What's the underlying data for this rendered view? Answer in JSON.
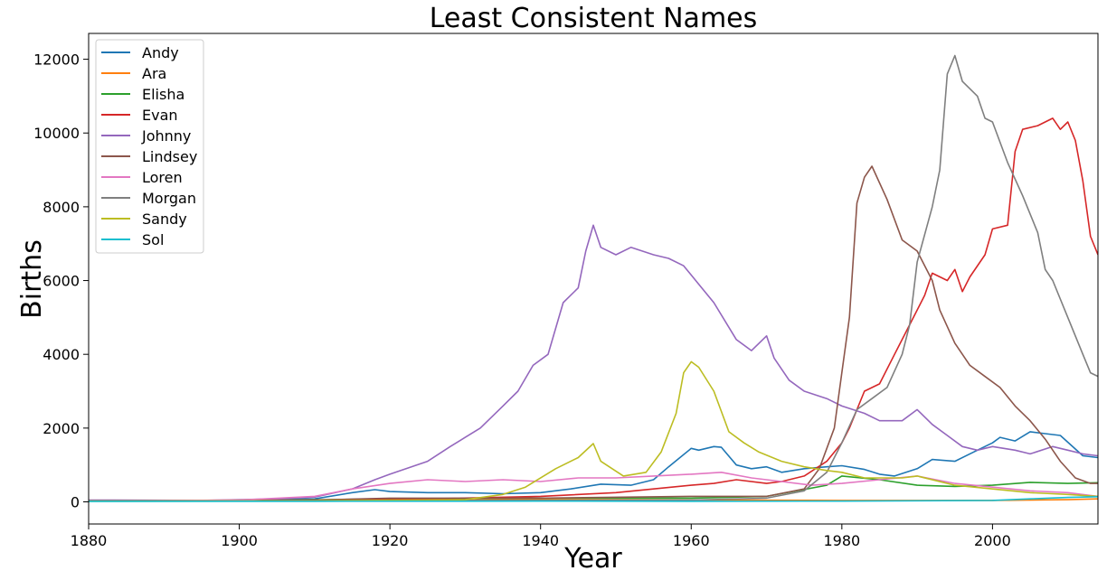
{
  "chart_data": {
    "type": "line",
    "title": "Least Consistent Names",
    "xlabel": "Year",
    "ylabel": "Births",
    "xlim": [
      1880,
      2014
    ],
    "ylim": [
      -600,
      12700
    ],
    "xticks": [
      1880,
      1900,
      1920,
      1940,
      1960,
      1980,
      2000
    ],
    "yticks": [
      0,
      2000,
      4000,
      6000,
      8000,
      10000,
      12000
    ],
    "legend_position": "top-left",
    "grid": false,
    "series": [
      {
        "name": "Andy",
        "color": "#1f77b4",
        "points": [
          [
            1880,
            30
          ],
          [
            1895,
            30
          ],
          [
            1910,
            80
          ],
          [
            1915,
            250
          ],
          [
            1918,
            330
          ],
          [
            1920,
            280
          ],
          [
            1925,
            250
          ],
          [
            1930,
            250
          ],
          [
            1935,
            220
          ],
          [
            1940,
            250
          ],
          [
            1944,
            350
          ],
          [
            1948,
            480
          ],
          [
            1952,
            450
          ],
          [
            1955,
            600
          ],
          [
            1957,
            950
          ],
          [
            1960,
            1450
          ],
          [
            1961,
            1400
          ],
          [
            1963,
            1500
          ],
          [
            1964,
            1480
          ],
          [
            1966,
            1000
          ],
          [
            1968,
            900
          ],
          [
            1970,
            950
          ],
          [
            1972,
            800
          ],
          [
            1975,
            900
          ],
          [
            1978,
            950
          ],
          [
            1980,
            980
          ],
          [
            1983,
            880
          ],
          [
            1985,
            750
          ],
          [
            1987,
            700
          ],
          [
            1990,
            900
          ],
          [
            1992,
            1150
          ],
          [
            1995,
            1100
          ],
          [
            1998,
            1400
          ],
          [
            2000,
            1600
          ],
          [
            2001,
            1750
          ],
          [
            2003,
            1650
          ],
          [
            2005,
            1900
          ],
          [
            2007,
            1850
          ],
          [
            2009,
            1800
          ],
          [
            2012,
            1250
          ],
          [
            2014,
            1200
          ]
        ]
      },
      {
        "name": "Ara",
        "color": "#ff7f0e",
        "points": [
          [
            1880,
            20
          ],
          [
            1900,
            20
          ],
          [
            1920,
            40
          ],
          [
            1940,
            60
          ],
          [
            1960,
            50
          ],
          [
            1980,
            40
          ],
          [
            2000,
            40
          ],
          [
            2010,
            60
          ],
          [
            2014,
            80
          ]
        ]
      },
      {
        "name": "Elisha",
        "color": "#2ca02c",
        "points": [
          [
            1880,
            20
          ],
          [
            1900,
            30
          ],
          [
            1920,
            80
          ],
          [
            1940,
            100
          ],
          [
            1960,
            100
          ],
          [
            1970,
            150
          ],
          [
            1978,
            450
          ],
          [
            1980,
            700
          ],
          [
            1985,
            600
          ],
          [
            1990,
            450
          ],
          [
            1995,
            420
          ],
          [
            2000,
            450
          ],
          [
            2005,
            530
          ],
          [
            2010,
            500
          ],
          [
            2014,
            520
          ]
        ]
      },
      {
        "name": "Evan",
        "color": "#d62728",
        "points": [
          [
            1880,
            20
          ],
          [
            1900,
            30
          ],
          [
            1920,
            60
          ],
          [
            1940,
            150
          ],
          [
            1950,
            250
          ],
          [
            1955,
            350
          ],
          [
            1960,
            450
          ],
          [
            1963,
            500
          ],
          [
            1966,
            600
          ],
          [
            1970,
            500
          ],
          [
            1972,
            550
          ],
          [
            1975,
            700
          ],
          [
            1978,
            1100
          ],
          [
            1980,
            1600
          ],
          [
            1981,
            2000
          ],
          [
            1983,
            3000
          ],
          [
            1985,
            3200
          ],
          [
            1987,
            4000
          ],
          [
            1989,
            4800
          ],
          [
            1991,
            5600
          ],
          [
            1992,
            6200
          ],
          [
            1994,
            6000
          ],
          [
            1995,
            6300
          ],
          [
            1996,
            5700
          ],
          [
            1997,
            6100
          ],
          [
            1999,
            6700
          ],
          [
            2000,
            7400
          ],
          [
            2002,
            7500
          ],
          [
            2003,
            9500
          ],
          [
            2004,
            10100
          ],
          [
            2006,
            10200
          ],
          [
            2008,
            10400
          ],
          [
            2009,
            10100
          ],
          [
            2010,
            10300
          ],
          [
            2011,
            9800
          ],
          [
            2012,
            8700
          ],
          [
            2013,
            7200
          ],
          [
            2014,
            6700
          ]
        ]
      },
      {
        "name": "Johnny",
        "color": "#9467bd",
        "points": [
          [
            1880,
            50
          ],
          [
            1895,
            40
          ],
          [
            1905,
            80
          ],
          [
            1910,
            130
          ],
          [
            1915,
            350
          ],
          [
            1918,
            600
          ],
          [
            1920,
            750
          ],
          [
            1925,
            1100
          ],
          [
            1928,
            1500
          ],
          [
            1930,
            1750
          ],
          [
            1932,
            2000
          ],
          [
            1935,
            2600
          ],
          [
            1937,
            3000
          ],
          [
            1939,
            3700
          ],
          [
            1941,
            4000
          ],
          [
            1943,
            5400
          ],
          [
            1945,
            5800
          ],
          [
            1946,
            6800
          ],
          [
            1947,
            7500
          ],
          [
            1948,
            6900
          ],
          [
            1950,
            6700
          ],
          [
            1952,
            6900
          ],
          [
            1955,
            6700
          ],
          [
            1957,
            6600
          ],
          [
            1959,
            6400
          ],
          [
            1961,
            5900
          ],
          [
            1963,
            5400
          ],
          [
            1966,
            4400
          ],
          [
            1968,
            4100
          ],
          [
            1970,
            4500
          ],
          [
            1971,
            3900
          ],
          [
            1973,
            3300
          ],
          [
            1975,
            3000
          ],
          [
            1978,
            2800
          ],
          [
            1980,
            2600
          ],
          [
            1983,
            2400
          ],
          [
            1985,
            2200
          ],
          [
            1988,
            2200
          ],
          [
            1990,
            2500
          ],
          [
            1992,
            2100
          ],
          [
            1994,
            1800
          ],
          [
            1996,
            1500
          ],
          [
            1998,
            1400
          ],
          [
            2000,
            1500
          ],
          [
            2003,
            1400
          ],
          [
            2005,
            1300
          ],
          [
            2008,
            1500
          ],
          [
            2010,
            1400
          ],
          [
            2012,
            1300
          ],
          [
            2014,
            1250
          ]
        ]
      },
      {
        "name": "Lindsey",
        "color": "#8c564b",
        "points": [
          [
            1880,
            20
          ],
          [
            1910,
            50
          ],
          [
            1920,
            100
          ],
          [
            1940,
            100
          ],
          [
            1960,
            150
          ],
          [
            1970,
            150
          ],
          [
            1975,
            350
          ],
          [
            1977,
            900
          ],
          [
            1979,
            2000
          ],
          [
            1980,
            3500
          ],
          [
            1981,
            5000
          ],
          [
            1982,
            8100
          ],
          [
            1983,
            8800
          ],
          [
            1984,
            9100
          ],
          [
            1986,
            8200
          ],
          [
            1988,
            7100
          ],
          [
            1990,
            6800
          ],
          [
            1992,
            6000
          ],
          [
            1993,
            5200
          ],
          [
            1995,
            4300
          ],
          [
            1997,
            3700
          ],
          [
            1999,
            3400
          ],
          [
            2001,
            3100
          ],
          [
            2003,
            2600
          ],
          [
            2005,
            2200
          ],
          [
            2007,
            1700
          ],
          [
            2009,
            1100
          ],
          [
            2011,
            650
          ],
          [
            2013,
            500
          ],
          [
            2014,
            500
          ]
        ]
      },
      {
        "name": "Loren",
        "color": "#e377c2",
        "points": [
          [
            1880,
            20
          ],
          [
            1900,
            50
          ],
          [
            1910,
            150
          ],
          [
            1915,
            350
          ],
          [
            1920,
            500
          ],
          [
            1925,
            600
          ],
          [
            1930,
            550
          ],
          [
            1935,
            600
          ],
          [
            1940,
            550
          ],
          [
            1945,
            650
          ],
          [
            1950,
            650
          ],
          [
            1955,
            700
          ],
          [
            1960,
            750
          ],
          [
            1964,
            800
          ],
          [
            1968,
            650
          ],
          [
            1972,
            550
          ],
          [
            1976,
            450
          ],
          [
            1980,
            500
          ],
          [
            1985,
            600
          ],
          [
            1990,
            700
          ],
          [
            1995,
            500
          ],
          [
            2000,
            400
          ],
          [
            2005,
            300
          ],
          [
            2010,
            250
          ],
          [
            2014,
            150
          ]
        ]
      },
      {
        "name": "Morgan",
        "color": "#7f7f7f",
        "points": [
          [
            1880,
            30
          ],
          [
            1910,
            30
          ],
          [
            1940,
            40
          ],
          [
            1960,
            50
          ],
          [
            1970,
            100
          ],
          [
            1975,
            300
          ],
          [
            1978,
            800
          ],
          [
            1980,
            1600
          ],
          [
            1982,
            2500
          ],
          [
            1984,
            2800
          ],
          [
            1986,
            3100
          ],
          [
            1988,
            4000
          ],
          [
            1989,
            4800
          ],
          [
            1990,
            6500
          ],
          [
            1992,
            8000
          ],
          [
            1993,
            9000
          ],
          [
            1994,
            11600
          ],
          [
            1995,
            12100
          ],
          [
            1996,
            11400
          ],
          [
            1998,
            11000
          ],
          [
            1999,
            10400
          ],
          [
            2000,
            10300
          ],
          [
            2002,
            9200
          ],
          [
            2004,
            8300
          ],
          [
            2006,
            7300
          ],
          [
            2007,
            6300
          ],
          [
            2008,
            6000
          ],
          [
            2010,
            5000
          ],
          [
            2012,
            4000
          ],
          [
            2013,
            3500
          ],
          [
            2014,
            3400
          ]
        ]
      },
      {
        "name": "Sandy",
        "color": "#bcbd22",
        "points": [
          [
            1880,
            20
          ],
          [
            1910,
            30
          ],
          [
            1930,
            60
          ],
          [
            1935,
            200
          ],
          [
            1938,
            400
          ],
          [
            1942,
            900
          ],
          [
            1945,
            1200
          ],
          [
            1947,
            1580
          ],
          [
            1948,
            1100
          ],
          [
            1951,
            700
          ],
          [
            1954,
            800
          ],
          [
            1956,
            1350
          ],
          [
            1958,
            2400
          ],
          [
            1959,
            3500
          ],
          [
            1960,
            3800
          ],
          [
            1961,
            3650
          ],
          [
            1963,
            3000
          ],
          [
            1965,
            1900
          ],
          [
            1967,
            1600
          ],
          [
            1969,
            1350
          ],
          [
            1972,
            1100
          ],
          [
            1975,
            950
          ],
          [
            1978,
            850
          ],
          [
            1980,
            800
          ],
          [
            1983,
            650
          ],
          [
            1988,
            650
          ],
          [
            1990,
            700
          ],
          [
            1995,
            450
          ],
          [
            2000,
            350
          ],
          [
            2005,
            250
          ],
          [
            2010,
            200
          ],
          [
            2014,
            150
          ]
        ]
      },
      {
        "name": "Sol",
        "color": "#17becf",
        "points": [
          [
            1880,
            10
          ],
          [
            1910,
            15
          ],
          [
            1940,
            20
          ],
          [
            1960,
            15
          ],
          [
            1980,
            20
          ],
          [
            2000,
            40
          ],
          [
            2005,
            80
          ],
          [
            2010,
            120
          ],
          [
            2014,
            140
          ]
        ]
      }
    ]
  }
}
